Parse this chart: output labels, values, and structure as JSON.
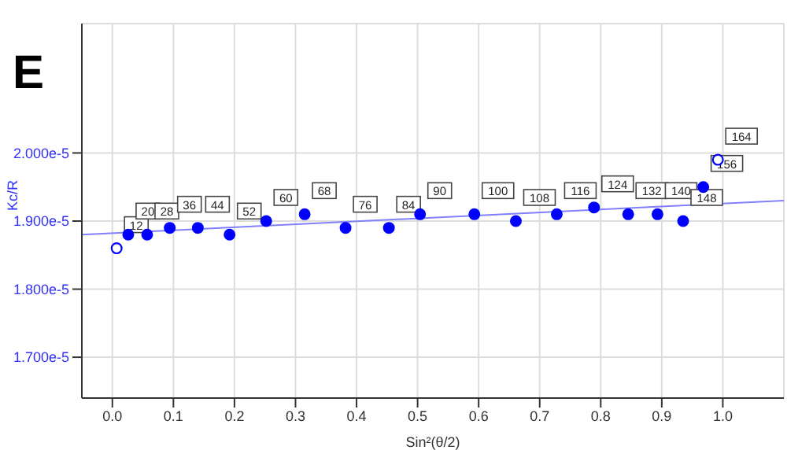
{
  "chart_data": {
    "type": "scatter",
    "title": "E",
    "xlabel": "Sin²(θ/2)",
    "ylabel": "Kc/R",
    "xlim": [
      -0.05,
      1.1
    ],
    "xticks": [
      {
        "value": 0,
        "label": "0.0"
      },
      {
        "value": 0.1,
        "label": "0.1"
      },
      {
        "value": 0.2,
        "label": "0.2"
      },
      {
        "value": 0.3,
        "label": "0.3"
      },
      {
        "value": 0.4,
        "label": "0.4"
      },
      {
        "value": 0.5,
        "label": "0.5"
      },
      {
        "value": 0.6,
        "label": "0.6"
      },
      {
        "value": 0.7,
        "label": "0.7"
      },
      {
        "value": 0.8,
        "label": "0.8"
      },
      {
        "value": 0.9,
        "label": "0.9"
      },
      {
        "value": 1,
        "label": "1.0"
      }
    ],
    "ylim": [
      1.64e-05,
      2.19e-05
    ],
    "yticks": [
      {
        "value": 1.7e-05,
        "label": "1.700e-5"
      },
      {
        "value": 1.8e-05,
        "label": "1.800e-5"
      },
      {
        "value": 1.9e-05,
        "label": "1.900e-5"
      },
      {
        "value": 2e-05,
        "label": "2.000e-5"
      }
    ],
    "grid": true,
    "marker": "circle",
    "series": [
      {
        "type": "line",
        "color": "#8080ff",
        "marker": "none",
        "x": [
          -0.05,
          1.1
        ],
        "values": [
          1.88e-05,
          1.93e-05
        ]
      },
      {
        "color": "#0000ff",
        "x": [
          0.026,
          0.057,
          0.094,
          0.14,
          0.192,
          0.252,
          0.315,
          0.382,
          0.453,
          0.504,
          0.593,
          0.661,
          0.728,
          0.789,
          0.845,
          0.893,
          0.935,
          0.968
        ],
        "values": [
          1.88e-05,
          1.88e-05,
          1.89e-05,
          1.89e-05,
          1.88e-05,
          1.9e-05,
          1.91e-05,
          1.89e-05,
          1.89e-05,
          1.91e-05,
          1.91e-05,
          1.9e-05,
          1.91e-05,
          1.92e-05,
          1.91e-05,
          1.91e-05,
          1.9e-05,
          1.95e-05
        ]
      },
      {
        "color": "#0000ff",
        "x": [
          0.007,
          0.992
        ],
        "values": [
          1.86e-05,
          1.99e-05
        ]
      }
    ],
    "annotations": [
      {
        "text": "12",
        "x": 0.007,
        "y": 1.86e-05
      },
      {
        "text": "20",
        "x": 0.026,
        "y": 1.88e-05
      },
      {
        "text": "28",
        "x": 0.057,
        "y": 1.88e-05
      },
      {
        "text": "36",
        "x": 0.094,
        "y": 1.89e-05
      },
      {
        "text": "44",
        "x": 0.14,
        "y": 1.89e-05
      },
      {
        "text": "52",
        "x": 0.192,
        "y": 1.88e-05
      },
      {
        "text": "60",
        "x": 0.252,
        "y": 1.9e-05
      },
      {
        "text": "68",
        "x": 0.315,
        "y": 1.91e-05
      },
      {
        "text": "76",
        "x": 0.382,
        "y": 1.89e-05
      },
      {
        "text": "84",
        "x": 0.453,
        "y": 1.89e-05
      },
      {
        "text": "90",
        "x": 0.504,
        "y": 1.91e-05
      },
      {
        "text": "100",
        "x": 0.593,
        "y": 1.91e-05
      },
      {
        "text": "108",
        "x": 0.661,
        "y": 1.9e-05
      },
      {
        "text": "116",
        "x": 0.728,
        "y": 1.91e-05
      },
      {
        "text": "124",
        "x": 0.789,
        "y": 1.92e-05
      },
      {
        "text": "132",
        "x": 0.845,
        "y": 1.91e-05
      },
      {
        "text": "140",
        "x": 0.893,
        "y": 1.91e-05
      },
      {
        "text": "148",
        "x": 0.935,
        "y": 1.9e-05
      },
      {
        "text": "156",
        "x": 0.968,
        "y": 1.95e-05
      },
      {
        "text": "164",
        "x": 0.992,
        "y": 1.99e-05
      }
    ]
  }
}
